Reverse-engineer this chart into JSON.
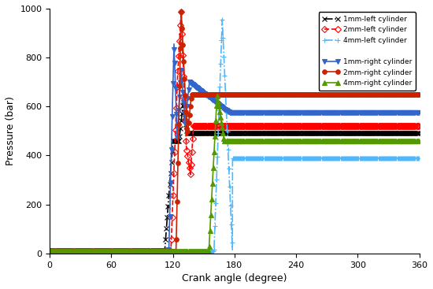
{
  "xlabel": "Crank angle (degree)",
  "ylabel": "Pressure (bar)",
  "xlim": [
    0,
    360
  ],
  "ylim": [
    0,
    1000
  ],
  "xticks": [
    0,
    60,
    120,
    180,
    240,
    300,
    360
  ],
  "yticks": [
    0,
    200,
    400,
    600,
    800,
    1000
  ],
  "series": [
    {
      "label": "1mm-left cylinder",
      "color": "black",
      "linestyle": "-.",
      "marker": "x",
      "markersize": 4,
      "linewidth": 1.2,
      "markevery": 8,
      "segments": [
        {
          "type": "flat",
          "x0": 0,
          "x1": 112,
          "y": 10
        },
        {
          "type": "rise",
          "x0": 112,
          "x1": 120,
          "y0": 10,
          "y1": 460
        },
        {
          "type": "flat",
          "x0": 120,
          "x1": 126,
          "y": 460
        },
        {
          "type": "rise",
          "x0": 126,
          "x1": 130,
          "y0": 460,
          "y1": 620
        },
        {
          "type": "fall",
          "x0": 130,
          "x1": 134,
          "y0": 620,
          "y1": 490
        },
        {
          "type": "flat",
          "x0": 134,
          "x1": 360,
          "y": 490
        }
      ],
      "marker_facecolor": "none"
    },
    {
      "label": "2mm-left cylinder",
      "color": "red",
      "linestyle": "--",
      "marker": "D",
      "markersize": 4,
      "linewidth": 1.2,
      "markevery": 8,
      "segments": [
        {
          "type": "flat",
          "x0": 0,
          "x1": 118,
          "y": 10
        },
        {
          "type": "rise",
          "x0": 118,
          "x1": 124,
          "y0": 10,
          "y1": 680
        },
        {
          "type": "rise",
          "x0": 124,
          "x1": 128,
          "y0": 680,
          "y1": 990
        },
        {
          "type": "fall",
          "x0": 128,
          "x1": 133,
          "y0": 990,
          "y1": 440
        },
        {
          "type": "fall",
          "x0": 133,
          "x1": 137,
          "y0": 440,
          "y1": 320
        },
        {
          "type": "rise",
          "x0": 137,
          "x1": 140,
          "y0": 320,
          "y1": 520
        },
        {
          "type": "flat",
          "x0": 140,
          "x1": 360,
          "y": 520
        }
      ],
      "marker_facecolor": "none"
    },
    {
      "label": "4mm-left cylinder",
      "color": "#4DB8FF",
      "linestyle": "-.",
      "marker": "+",
      "markersize": 5,
      "linewidth": 1.2,
      "markevery": 8,
      "segments": [
        {
          "type": "flat",
          "x0": 0,
          "x1": 160,
          "y": 10
        },
        {
          "type": "rise",
          "x0": 160,
          "x1": 168,
          "y0": 10,
          "y1": 960
        },
        {
          "type": "fall",
          "x0": 168,
          "x1": 178,
          "y0": 960,
          "y1": 10
        },
        {
          "type": "flat",
          "x0": 178,
          "x1": 360,
          "y": 390
        }
      ],
      "marker_facecolor": "none"
    },
    {
      "label": "1mm-right cylinder",
      "color": "#3366CC",
      "linestyle": "-",
      "marker": "v",
      "markersize": 4,
      "linewidth": 1.2,
      "markevery": 8,
      "segments": [
        {
          "type": "flat",
          "x0": 0,
          "x1": 116,
          "y": 10
        },
        {
          "type": "rise",
          "x0": 116,
          "x1": 121,
          "y0": 10,
          "y1": 860
        },
        {
          "type": "fall",
          "x0": 121,
          "x1": 124,
          "y0": 860,
          "y1": 470
        },
        {
          "type": "rise",
          "x0": 124,
          "x1": 128,
          "y0": 470,
          "y1": 750
        },
        {
          "type": "fall",
          "x0": 128,
          "x1": 132,
          "y0": 750,
          "y1": 530
        },
        {
          "type": "rise",
          "x0": 132,
          "x1": 136,
          "y0": 530,
          "y1": 700
        },
        {
          "type": "fall",
          "x0": 136,
          "x1": 175,
          "y0": 700,
          "y1": 575
        },
        {
          "type": "flat",
          "x0": 175,
          "x1": 360,
          "y": 575
        }
      ],
      "marker_facecolor": "#3366CC"
    },
    {
      "label": "2mm-right cylinder",
      "color": "#CC2200",
      "linestyle": "-",
      "marker": "o",
      "markersize": 4,
      "linewidth": 1.2,
      "markevery": 8,
      "segments": [
        {
          "type": "flat",
          "x0": 0,
          "x1": 123,
          "y": 10
        },
        {
          "type": "rise",
          "x0": 123,
          "x1": 128,
          "y0": 10,
          "y1": 990
        },
        {
          "type": "fall",
          "x0": 128,
          "x1": 134,
          "y0": 990,
          "y1": 480
        },
        {
          "type": "rise",
          "x0": 134,
          "x1": 138,
          "y0": 480,
          "y1": 650
        },
        {
          "type": "fall",
          "x0": 138,
          "x1": 145,
          "y0": 650,
          "y1": 650
        },
        {
          "type": "flat",
          "x0": 145,
          "x1": 360,
          "y": 650
        }
      ],
      "marker_facecolor": "#CC2200"
    },
    {
      "label": "4mm-right cylinder",
      "color": "#559900",
      "linestyle": "-",
      "marker": "^",
      "markersize": 4,
      "linewidth": 1.2,
      "markevery": 8,
      "segments": [
        {
          "type": "flat",
          "x0": 0,
          "x1": 155,
          "y": 10
        },
        {
          "type": "rise",
          "x0": 155,
          "x1": 163,
          "y0": 10,
          "y1": 650
        },
        {
          "type": "fall",
          "x0": 163,
          "x1": 170,
          "y0": 650,
          "y1": 460
        },
        {
          "type": "flat",
          "x0": 170,
          "x1": 360,
          "y": 460
        }
      ],
      "marker_facecolor": "#559900"
    }
  ]
}
